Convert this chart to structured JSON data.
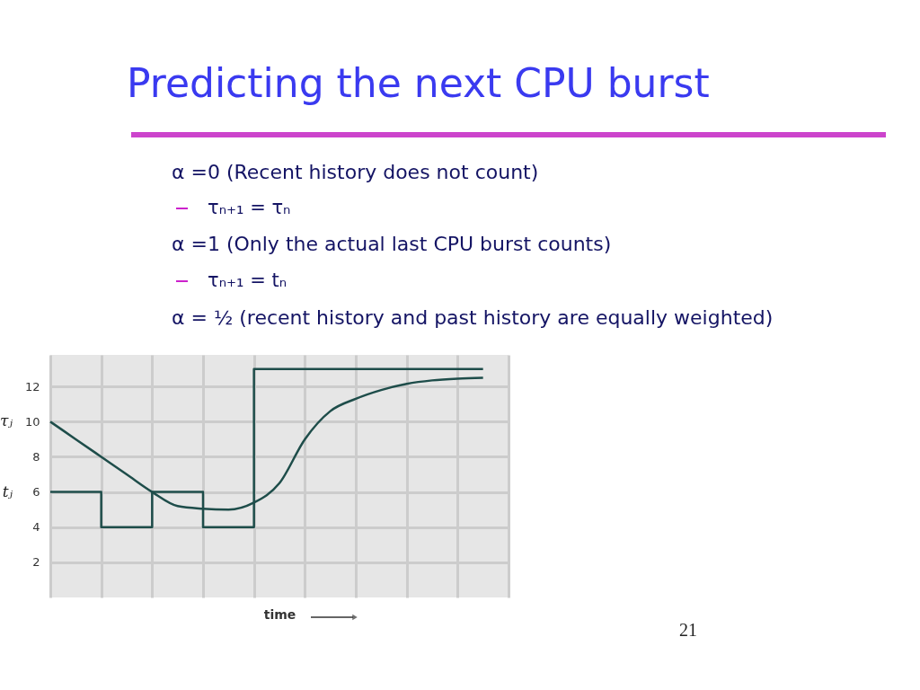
{
  "chart_data": {
    "type": "line",
    "title": "Predicting the next CPU burst",
    "annotations": [
      "α =0 (Recent history does not count)",
      "τₙ₊₁ = τₙ",
      "α =1 (Only the actual last CPU burst counts)",
      "τₙ₊₁ = tₙ",
      "α = ½  (recent history and past history are equally weighted)",
      "21"
    ],
    "xlabel": "time",
    "categories": [
      null,
      null,
      null,
      null,
      null,
      null,
      null,
      null,
      null,
      null,
      null,
      null,
      null,
      null,
      null,
      null,
      null,
      null
    ],
    "series": [
      {
        "name": "τⱼ",
        "color": "#1e4d4a",
        "values": [
          10,
          9,
          8,
          7,
          6,
          5.2,
          5.05,
          5.0,
          5.4,
          6.5,
          9.0,
          10.6,
          11.3,
          11.8,
          12.15,
          12.35,
          12.45,
          12.5
        ]
      },
      {
        "name": "tⱼ",
        "type": "step",
        "color": "#1e4d4a",
        "values": [
          6,
          6,
          4,
          4,
          6,
          6,
          4,
          4,
          13,
          13,
          13,
          13,
          13,
          13,
          13,
          13,
          13,
          13
        ]
      }
    ],
    "ylim": [
      0,
      13.8
    ],
    "yticks": [
      2,
      4,
      6,
      8,
      10,
      12
    ],
    "tick_labels": "y",
    "grid": true,
    "marker": "none",
    "line_style": "solid",
    "legend": false
  }
}
